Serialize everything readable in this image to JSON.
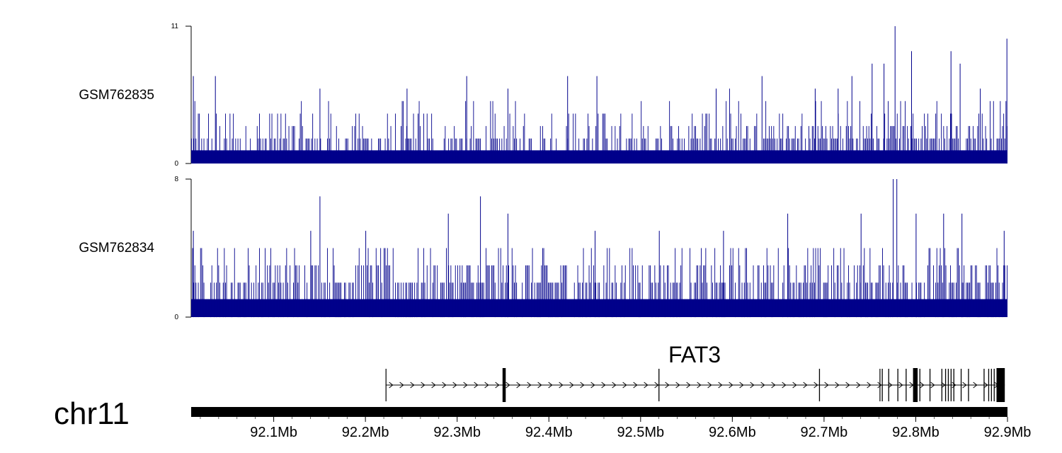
{
  "chart_data": {
    "type": "bar",
    "chromosome": "chr11",
    "x_unit": "Mb",
    "xlim": [
      92.01,
      92.9
    ],
    "x_ticks": [
      "92.1Mb",
      "92.2Mb",
      "92.3Mb",
      "92.4Mb",
      "92.5Mb",
      "92.6Mb",
      "92.7Mb",
      "92.8Mb",
      "92.9Mb"
    ],
    "x_tick_values": [
      92.1,
      92.2,
      92.3,
      92.4,
      92.5,
      92.6,
      92.7,
      92.8,
      92.9
    ],
    "tracks": [
      {
        "name": "GSM762835",
        "ylim": [
          0,
          11
        ],
        "y_ticks": [
          "0",
          "11"
        ],
        "baseline": 1,
        "peaks": [
          {
            "x": 92.012,
            "y": 7
          },
          {
            "x": 92.036,
            "y": 7
          },
          {
            "x": 92.15,
            "y": 6
          },
          {
            "x": 92.245,
            "y": 6
          },
          {
            "x": 92.31,
            "y": 7
          },
          {
            "x": 92.355,
            "y": 6
          },
          {
            "x": 92.42,
            "y": 7
          },
          {
            "x": 92.452,
            "y": 7
          },
          {
            "x": 92.582,
            "y": 6
          },
          {
            "x": 92.632,
            "y": 7
          },
          {
            "x": 92.69,
            "y": 6
          },
          {
            "x": 92.715,
            "y": 6
          },
          {
            "x": 92.73,
            "y": 7
          },
          {
            "x": 92.752,
            "y": 8
          },
          {
            "x": 92.765,
            "y": 8
          },
          {
            "x": 92.777,
            "y": 11
          },
          {
            "x": 92.795,
            "y": 9
          },
          {
            "x": 92.838,
            "y": 9
          },
          {
            "x": 92.848,
            "y": 8
          },
          {
            "x": 92.87,
            "y": 6
          },
          {
            "x": 92.899,
            "y": 10
          }
        ]
      },
      {
        "name": "GSM762834",
        "ylim": [
          0,
          8
        ],
        "y_ticks": [
          "0",
          "8"
        ],
        "baseline": 1,
        "peaks": [
          {
            "x": 92.012,
            "y": 5
          },
          {
            "x": 92.15,
            "y": 7
          },
          {
            "x": 92.14,
            "y": 5
          },
          {
            "x": 92.2,
            "y": 5
          },
          {
            "x": 92.29,
            "y": 6
          },
          {
            "x": 92.325,
            "y": 7
          },
          {
            "x": 92.355,
            "y": 6
          },
          {
            "x": 92.45,
            "y": 5
          },
          {
            "x": 92.52,
            "y": 5
          },
          {
            "x": 92.59,
            "y": 5
          },
          {
            "x": 92.66,
            "y": 6
          },
          {
            "x": 92.74,
            "y": 6
          },
          {
            "x": 92.775,
            "y": 8
          },
          {
            "x": 92.779,
            "y": 8
          },
          {
            "x": 92.8,
            "y": 6
          },
          {
            "x": 92.83,
            "y": 6
          },
          {
            "x": 92.85,
            "y": 6
          },
          {
            "x": 92.896,
            "y": 5
          }
        ]
      }
    ],
    "gene": {
      "name": "FAT3",
      "strand": "+",
      "start": 92.222,
      "end": 92.897,
      "exons": [
        {
          "start": 92.222,
          "end": 92.2225,
          "big": false
        },
        {
          "start": 92.3495,
          "end": 92.353,
          "big": true
        },
        {
          "start": 92.5195,
          "end": 92.5205,
          "big": false
        },
        {
          "start": 92.6945,
          "end": 92.6955,
          "big": false
        },
        {
          "start": 92.7605,
          "end": 92.761,
          "big": false
        },
        {
          "start": 92.763,
          "end": 92.764,
          "big": false
        },
        {
          "start": 92.77,
          "end": 92.771,
          "big": false
        },
        {
          "start": 92.78,
          "end": 92.781,
          "big": false
        },
        {
          "start": 92.789,
          "end": 92.79,
          "big": false
        },
        {
          "start": 92.797,
          "end": 92.802,
          "big": true
        },
        {
          "start": 92.804,
          "end": 92.805,
          "big": false
        },
        {
          "start": 92.815,
          "end": 92.816,
          "big": false
        },
        {
          "start": 92.828,
          "end": 92.829,
          "big": false
        },
        {
          "start": 92.832,
          "end": 92.833,
          "big": false
        },
        {
          "start": 92.835,
          "end": 92.836,
          "big": false
        },
        {
          "start": 92.838,
          "end": 92.839,
          "big": false
        },
        {
          "start": 92.841,
          "end": 92.842,
          "big": false
        },
        {
          "start": 92.849,
          "end": 92.85,
          "big": false
        },
        {
          "start": 92.857,
          "end": 92.858,
          "big": false
        },
        {
          "start": 92.874,
          "end": 92.875,
          "big": false
        },
        {
          "start": 92.879,
          "end": 92.88,
          "big": false
        },
        {
          "start": 92.882,
          "end": 92.883,
          "big": false
        },
        {
          "start": 92.885,
          "end": 92.886,
          "big": false
        },
        {
          "start": 92.888,
          "end": 92.897,
          "big": true
        }
      ]
    },
    "colors": {
      "signal": "#00008b",
      "axis": "#000000",
      "gene": "#000000",
      "ideogram": "#000000"
    }
  }
}
